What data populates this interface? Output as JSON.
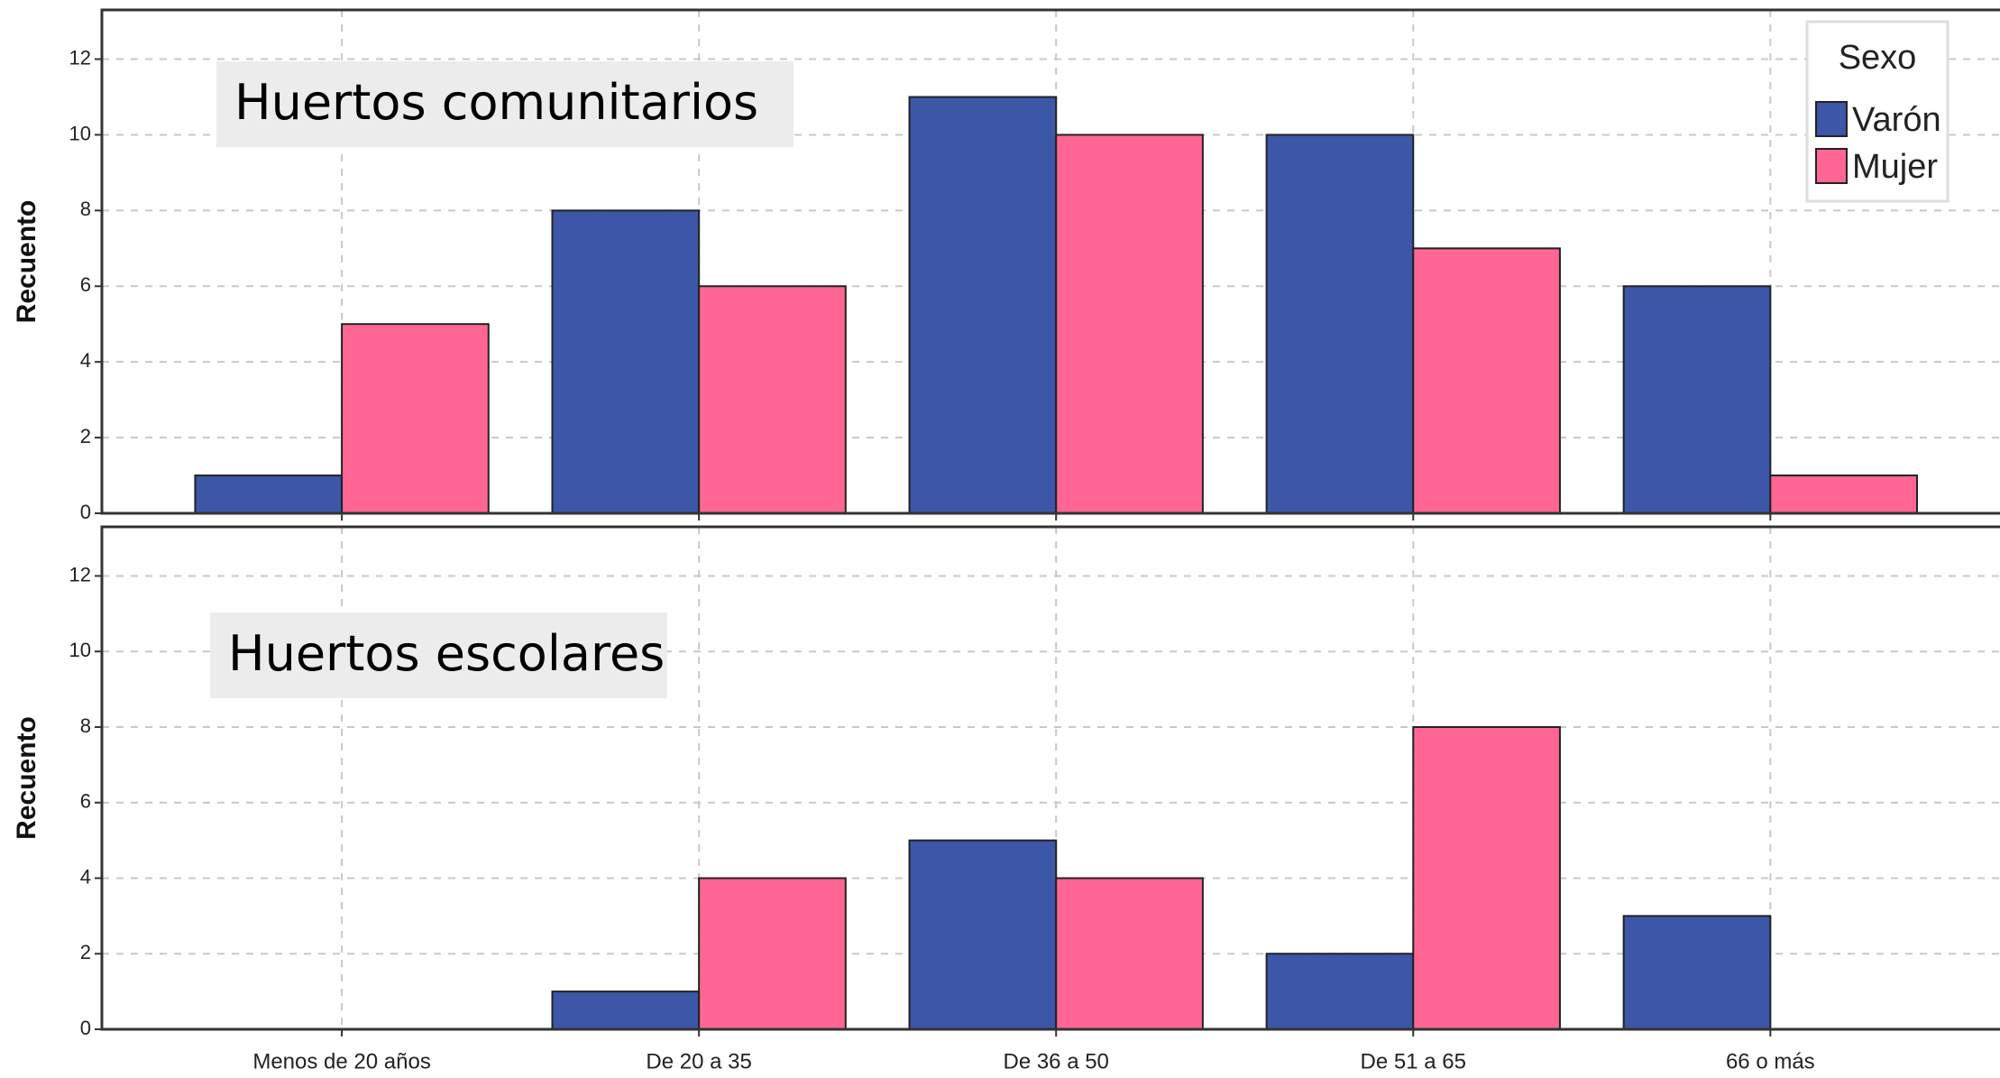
{
  "chart_data": [
    {
      "type": "bar",
      "title": "Huertos comunitarios",
      "ylabel": "Recuento",
      "categories": [
        null,
        null,
        null,
        null,
        null
      ],
      "series": [
        {
          "name": "Varón",
          "color": "#3c56a8",
          "values": [
            1,
            8,
            11,
            10,
            6
          ]
        },
        {
          "name": "Mujer",
          "color": "#ff6694",
          "values": [
            5,
            6,
            10,
            7,
            1
          ]
        }
      ],
      "ylim": [
        0,
        13.3
      ],
      "yticks": [
        0,
        2,
        4,
        6,
        8,
        10,
        12
      ],
      "grid": true,
      "legend_title": "Sexo",
      "legend": "top-right"
    },
    {
      "type": "bar",
      "title": "Huertos escolares",
      "ylabel": "Recuento",
      "categories": [
        "Menos de 20 años",
        "De 20 a 35",
        "De 36 a 50",
        "De 51 a 65",
        "66 o más"
      ],
      "series": [
        {
          "color": "#3c56a8",
          "values": [
            0,
            1,
            5,
            2,
            3
          ]
        },
        {
          "color": "#ff6694",
          "values": [
            0,
            4,
            4,
            8,
            0
          ]
        }
      ],
      "ylim": [
        0,
        13.3
      ],
      "yticks": [
        0,
        2,
        4,
        6,
        8,
        10,
        12
      ],
      "grid": true
    }
  ]
}
